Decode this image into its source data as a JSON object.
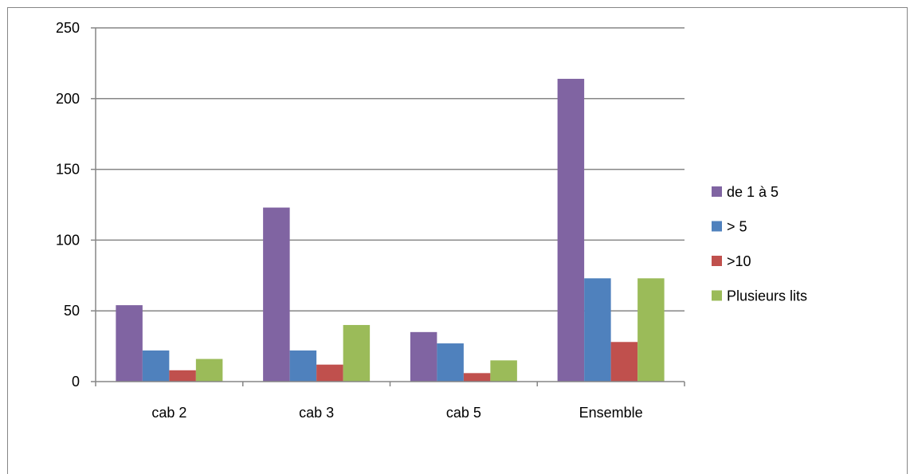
{
  "chart_data": {
    "type": "bar",
    "title": "",
    "xlabel": "",
    "ylabel": "",
    "categories": [
      "cab 2",
      "cab 3",
      "cab 5",
      "Ensemble"
    ],
    "ylim": [
      0,
      250
    ],
    "yticks": [
      0,
      50,
      100,
      150,
      200,
      250
    ],
    "grid": true,
    "legend_position": "right",
    "series": [
      {
        "name": "de 1 à 5",
        "color": "#8064A2",
        "values": [
          54,
          123,
          35,
          214
        ]
      },
      {
        "name": "> 5",
        "color": "#4F81BD",
        "values": [
          22,
          22,
          27,
          73
        ]
      },
      {
        "name": ">10",
        "color": "#C0504D",
        "values": [
          8,
          12,
          6,
          28
        ]
      },
      {
        "name": "Plusieurs lits",
        "color": "#9BBB59",
        "values": [
          16,
          40,
          15,
          73
        ]
      }
    ]
  }
}
